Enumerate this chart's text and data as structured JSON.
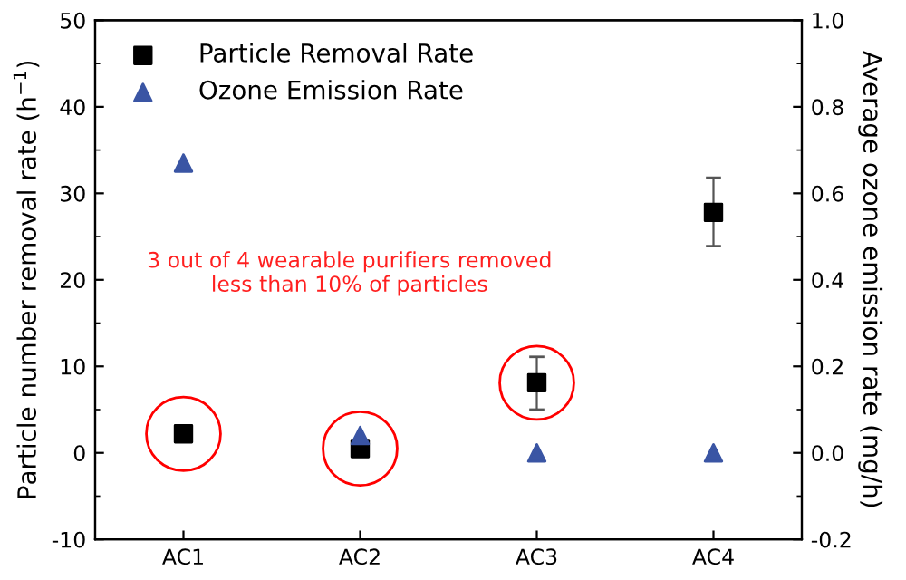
{
  "chart_data": {
    "type": "scatter",
    "categories": [
      "AC1",
      "AC2",
      "AC3",
      "AC4"
    ],
    "ylabel": "Particle number removal rate (h$^{−1}$)",
    "y2label": "Average ozone emission rate (mg/h)",
    "series": [
      {
        "name": "Particle Removal Rate",
        "color": "#000000",
        "marker": "square",
        "values": [
          2.2,
          0.5,
          8.1,
          27.8
        ],
        "errors": [
          null,
          null,
          [
            5.0,
            11.1
          ],
          [
            23.9,
            31.8
          ]
        ]
      },
      {
        "name": "Ozone Emission Rate",
        "color": "#3a55a4",
        "marker": "triangle",
        "axis": "y2",
        "values": [
          0.67,
          0.04,
          0.0,
          0.0
        ]
      }
    ],
    "ylim": [
      -10,
      50
    ],
    "yticks": [
      -10,
      0,
      10,
      20,
      30,
      40,
      50
    ],
    "y2lim": [
      -0.2,
      1.0
    ],
    "y2ticks": [
      -0.2,
      {
        "value": 0,
        "label": "0.0"
      },
      0.2,
      0.4,
      0.6,
      0.8,
      {
        "value": 1,
        "label": "1.0"
      }
    ],
    "annotations": [
      {
        "text": "3 out of 4 wearable purifiers removed\nless than 10% of particles"
      }
    ],
    "legend": "top left",
    "grid": false
  }
}
